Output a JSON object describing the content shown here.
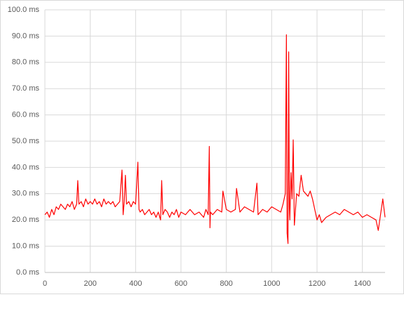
{
  "chart_data": {
    "type": "line",
    "x": [
      0,
      10,
      20,
      30,
      40,
      50,
      60,
      70,
      80,
      90,
      100,
      110,
      120,
      130,
      140,
      145,
      150,
      160,
      170,
      180,
      190,
      200,
      210,
      220,
      230,
      240,
      250,
      260,
      270,
      280,
      290,
      300,
      310,
      320,
      330,
      340,
      345,
      350,
      355,
      360,
      370,
      380,
      390,
      400,
      410,
      415,
      420,
      430,
      440,
      450,
      460,
      470,
      480,
      490,
      500,
      510,
      515,
      520,
      530,
      540,
      550,
      560,
      570,
      580,
      590,
      600,
      620,
      640,
      660,
      680,
      700,
      710,
      720,
      725,
      728,
      730,
      740,
      760,
      780,
      785,
      800,
      820,
      840,
      845,
      860,
      880,
      900,
      920,
      935,
      940,
      960,
      980,
      1000,
      1020,
      1040,
      1050,
      1060,
      1065,
      1068,
      1072,
      1075,
      1078,
      1080,
      1085,
      1090,
      1095,
      1100,
      1110,
      1120,
      1130,
      1140,
      1150,
      1160,
      1170,
      1180,
      1190,
      1200,
      1210,
      1220,
      1240,
      1260,
      1280,
      1300,
      1320,
      1340,
      1360,
      1380,
      1400,
      1420,
      1440,
      1460,
      1470,
      1480,
      1490,
      1500
    ],
    "series": [
      {
        "color": "#ff0000",
        "values": [
          22,
          23,
          21,
          24,
          22,
          25,
          24,
          26,
          25,
          24,
          26,
          25,
          27,
          24,
          26,
          35,
          26,
          27,
          25,
          28,
          26,
          27,
          26,
          28,
          26,
          27,
          25,
          28,
          26,
          27,
          26,
          27,
          25,
          26,
          27,
          39,
          22,
          27,
          37,
          26,
          27,
          25,
          27,
          26,
          42,
          24,
          23,
          24,
          22,
          23,
          24,
          22,
          23,
          21,
          23,
          20,
          35,
          22,
          24,
          23,
          21,
          23,
          22,
          24,
          21,
          23,
          22,
          24,
          22,
          23,
          21,
          24,
          22,
          48,
          17,
          23,
          22,
          24,
          23,
          31,
          24,
          23,
          24,
          32,
          23,
          25,
          24,
          23,
          34,
          22,
          24,
          23,
          25,
          24,
          23,
          26,
          30,
          90.5,
          15,
          11,
          84,
          25,
          20,
          38,
          28,
          50.5,
          18,
          30,
          29,
          37,
          31,
          30,
          29,
          31,
          28,
          24,
          20,
          22,
          19,
          21,
          22,
          23,
          22,
          24,
          23,
          22,
          23,
          21,
          22,
          21,
          20,
          16,
          22,
          28,
          21
        ]
      }
    ],
    "xlim": [
      0,
      1500
    ],
    "xticks": [
      0,
      200,
      400,
      600,
      800,
      1000,
      1200,
      1400
    ],
    "ylim": [
      0,
      100
    ],
    "yticks": [
      {
        "value": 0,
        "label": "0.0 ms"
      },
      {
        "value": 10,
        "label": "10.0 ms"
      },
      {
        "value": 20,
        "label": "20.0 ms"
      },
      {
        "value": 30,
        "label": "30.0 ms"
      },
      {
        "value": 40,
        "label": "40.0 ms"
      },
      {
        "value": 50,
        "label": "50.0 ms"
      },
      {
        "value": 60,
        "label": "60.0 ms"
      },
      {
        "value": 70,
        "label": "70.0 ms"
      },
      {
        "value": 80,
        "label": "80.0 ms"
      },
      {
        "value": 90,
        "label": "90.0 ms"
      },
      {
        "value": 100,
        "label": "100.0 ms"
      }
    ],
    "grid": true
  }
}
